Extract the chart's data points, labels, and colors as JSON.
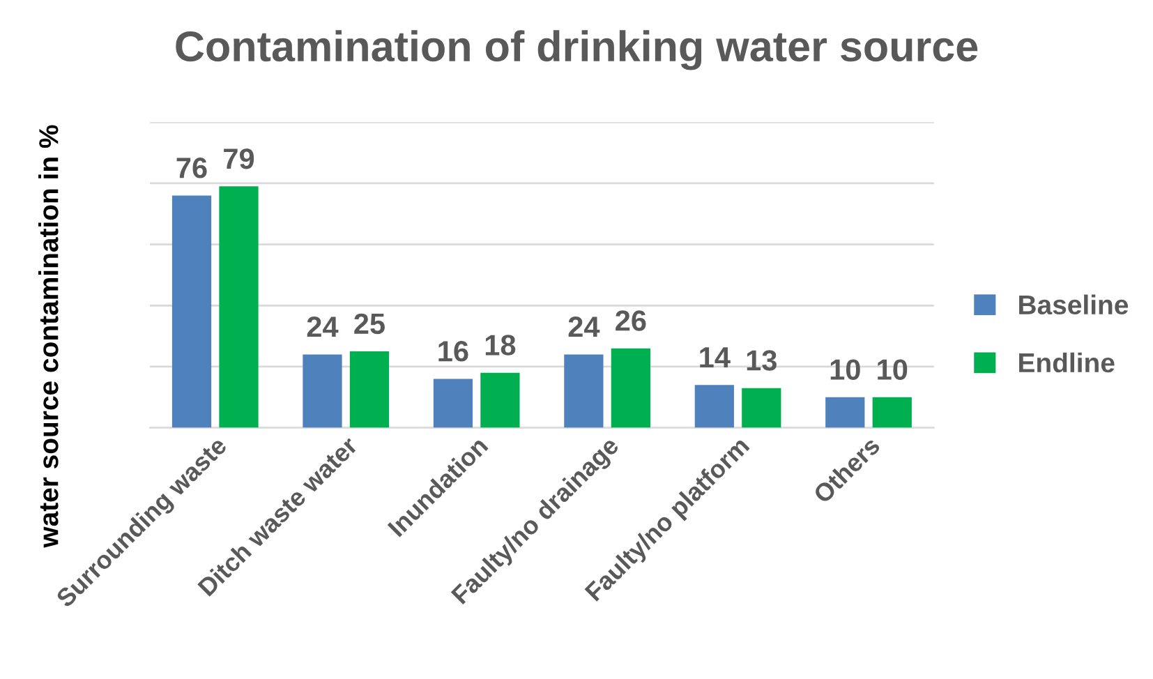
{
  "chart_data": {
    "type": "bar",
    "title": "Contamination of drinking water source",
    "ylabel": "water source contamination in %",
    "categories": [
      "Surrounding waste",
      "Ditch waste water",
      "Inundation",
      "Faulty/no drainage",
      "Faulty/no platform",
      "Others"
    ],
    "series": [
      {
        "name": "Baseline",
        "color": "#4f81bd",
        "values": [
          76,
          24,
          16,
          24,
          14,
          10
        ]
      },
      {
        "name": "Endline",
        "color": "#00b050",
        "values": [
          79,
          25,
          18,
          26,
          13,
          10
        ]
      }
    ],
    "ylim": [
      0,
      100
    ],
    "yticks": [
      {
        "value": 0,
        "label": null
      },
      {
        "value": 20,
        "label": null
      },
      {
        "value": 40,
        "label": null
      },
      {
        "value": 60,
        "label": null
      },
      {
        "value": 80,
        "label": null
      },
      {
        "value": 100,
        "label": null
      }
    ],
    "grid": "y",
    "legend": "right",
    "data_labels": true
  }
}
